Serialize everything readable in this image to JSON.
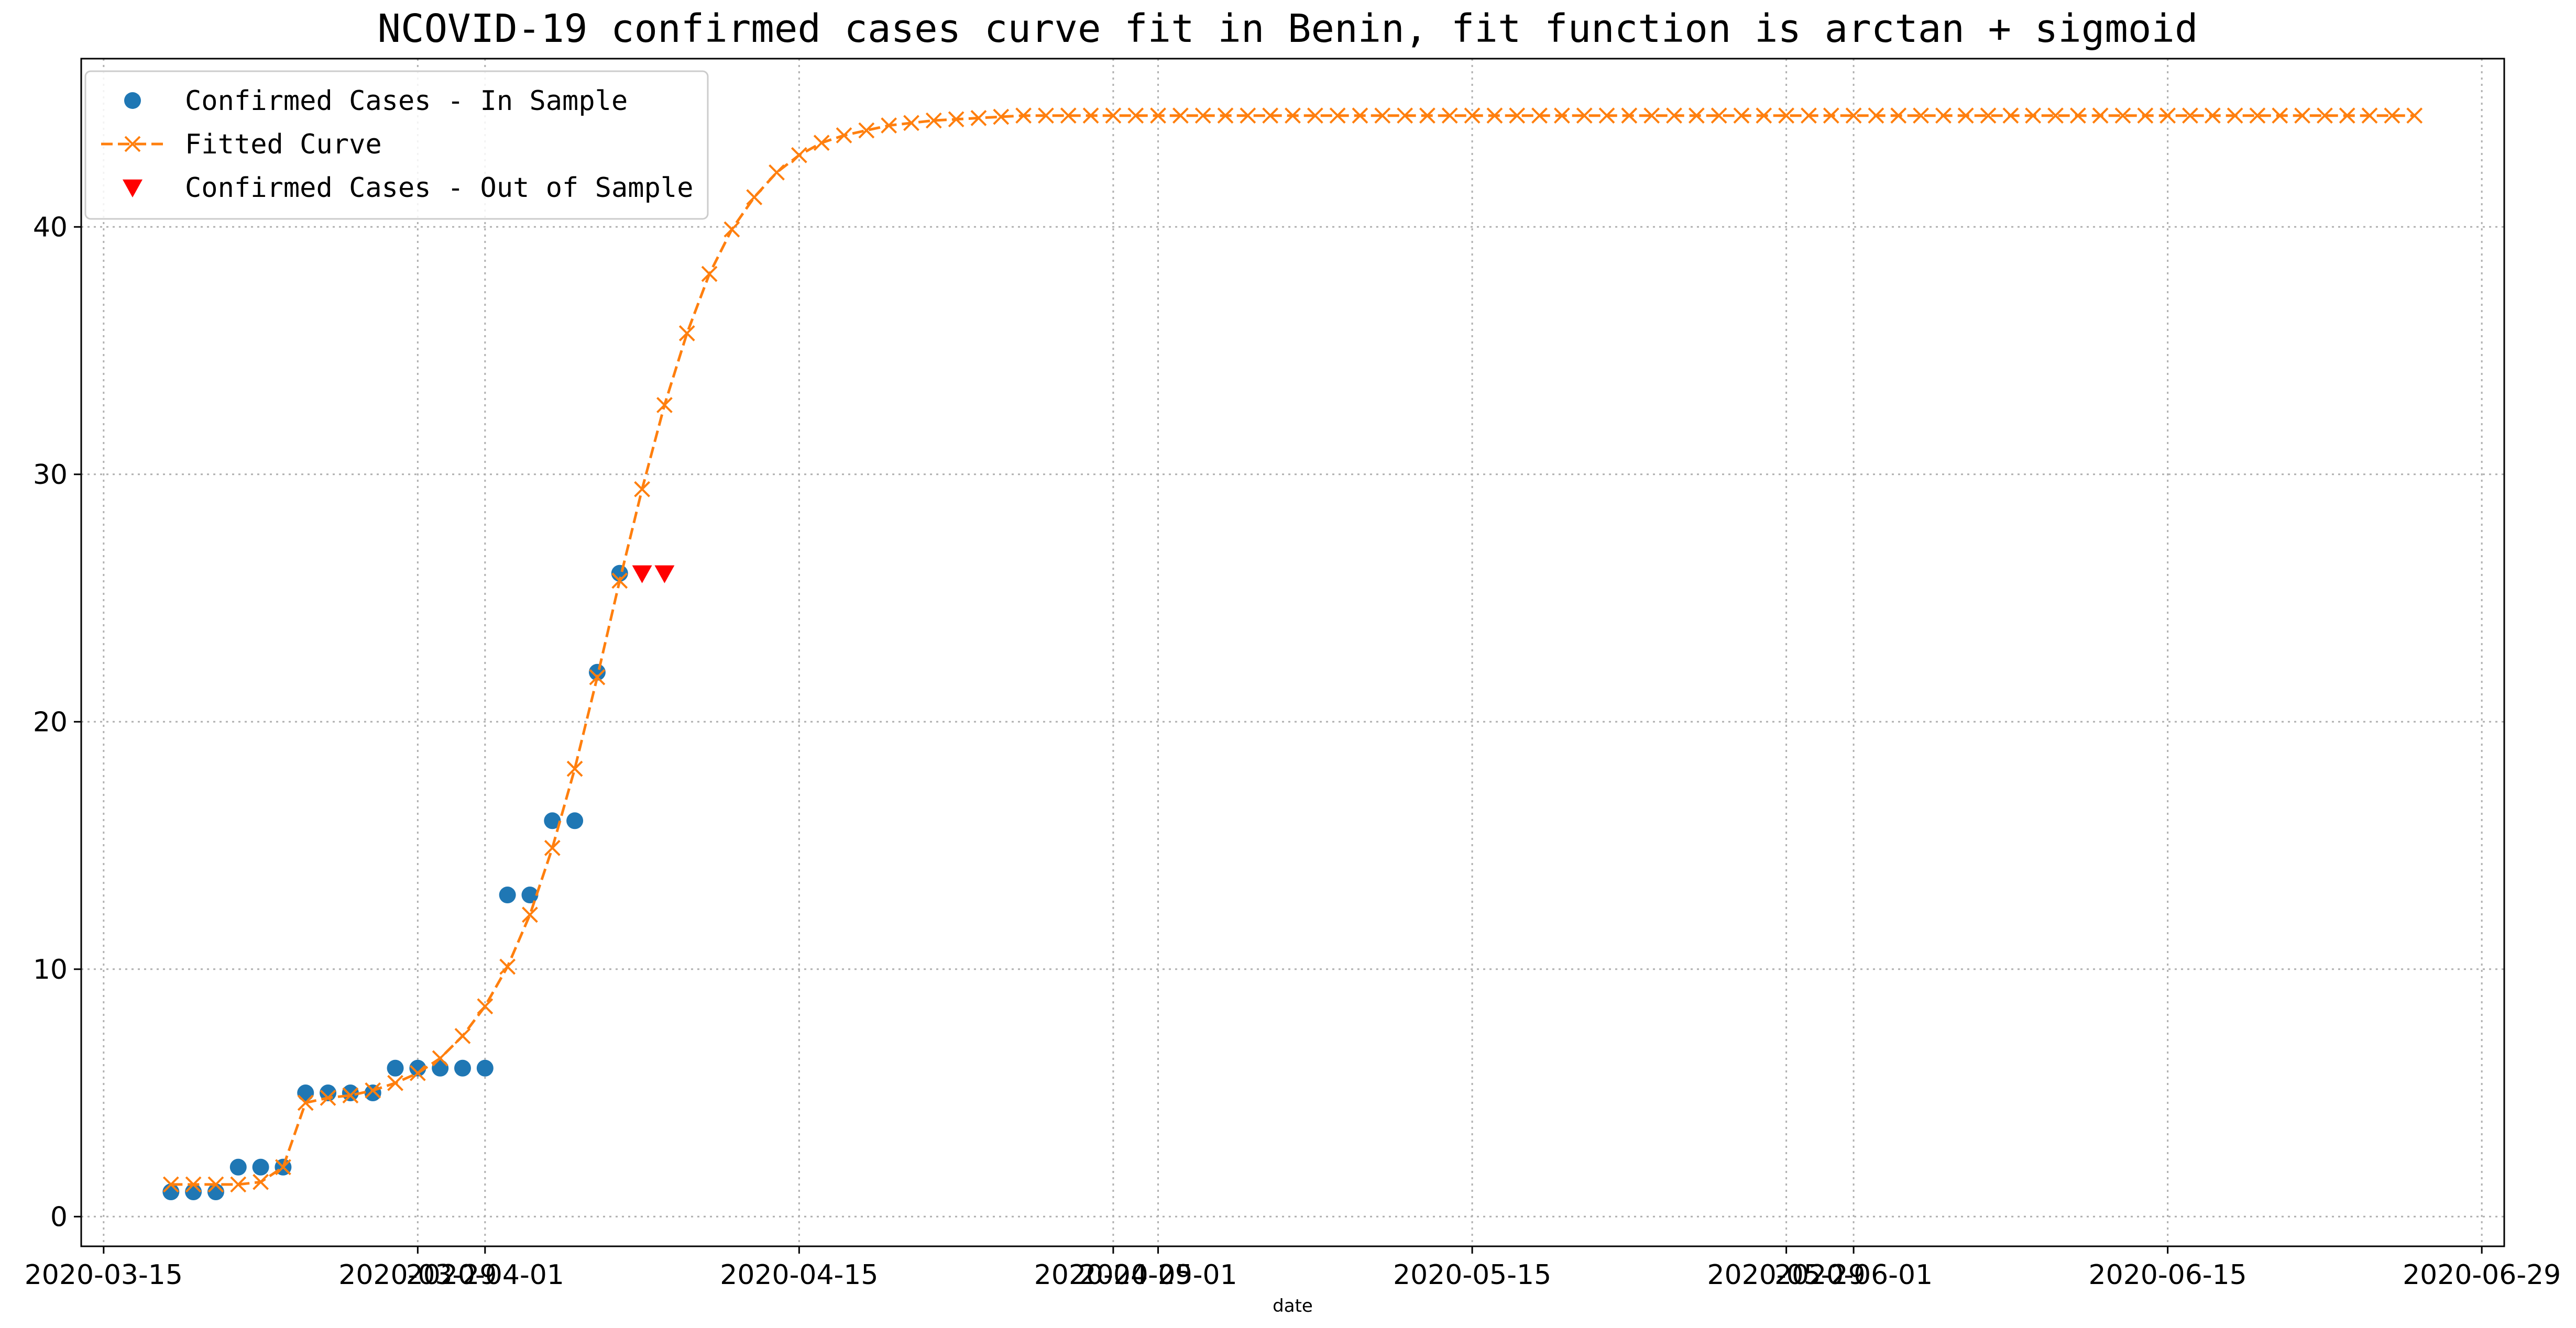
{
  "chart_data": {
    "type": "line",
    "title": "NCOVID-19 confirmed cases curve fit in Benin, fit function is arctan + sigmoid",
    "xlabel": "date",
    "ylabel": "",
    "xlim": [
      "2020-03-14",
      "2020-06-30"
    ],
    "ylim": [
      -1.2,
      46.8
    ],
    "grid": true,
    "legend_position": "top-left",
    "x_ticks": [
      {
        "date": "2020-03-15",
        "label": "2020-03-15"
      },
      {
        "date": "2020-03-29",
        "label": "2020-03-29"
      },
      {
        "date": "2020-04-01",
        "label": "2020-04-01"
      },
      {
        "date": "2020-04-15",
        "label": "2020-04-15"
      },
      {
        "date": "2020-04-29",
        "label": "2020-04-29"
      },
      {
        "date": "2020-05-01",
        "label": "2020-05-01"
      },
      {
        "date": "2020-05-15",
        "label": "2020-05-15"
      },
      {
        "date": "2020-05-29",
        "label": "2020-05-29"
      },
      {
        "date": "2020-06-01",
        "label": "2020-06-01"
      },
      {
        "date": "2020-06-15",
        "label": "2020-06-15"
      },
      {
        "date": "2020-06-29",
        "label": "2020-06-29"
      }
    ],
    "y_ticks": [
      0,
      10,
      20,
      30,
      40
    ],
    "series": [
      {
        "name": "Confirmed Cases - In Sample",
        "kind": "scatter",
        "marker": "circle",
        "color": "#1f77b4",
        "start_date": "2020-03-18",
        "values": [
          1,
          1,
          1,
          2,
          2,
          2,
          5,
          5,
          5,
          5,
          6,
          6,
          6,
          6,
          6,
          13,
          13,
          16,
          16,
          22,
          26
        ]
      },
      {
        "name": "Fitted Curve",
        "kind": "line",
        "marker": "x",
        "line_style": "dashed",
        "color": "#ff7f0e",
        "start_date": "2020-03-18",
        "values": [
          1.3,
          1.3,
          1.3,
          1.3,
          1.4,
          2.0,
          4.6,
          4.8,
          4.9,
          5.1,
          5.4,
          5.8,
          6.4,
          7.3,
          8.5,
          10.1,
          12.2,
          14.9,
          18.1,
          21.8,
          25.7,
          29.4,
          32.8,
          35.7,
          38.1,
          39.9,
          41.2,
          42.2,
          42.9,
          43.4,
          43.7,
          43.9,
          44.1,
          44.2,
          44.3,
          44.35,
          44.4,
          44.45,
          44.5,
          44.5,
          44.5,
          44.5,
          44.5,
          44.5,
          44.5,
          44.5,
          44.5,
          44.5,
          44.5,
          44.5,
          44.5,
          44.5,
          44.5,
          44.5,
          44.5,
          44.5,
          44.5,
          44.5,
          44.5,
          44.5,
          44.5,
          44.5,
          44.5,
          44.5,
          44.5,
          44.5,
          44.5,
          44.5,
          44.5,
          44.5,
          44.5,
          44.5,
          44.5,
          44.5,
          44.5,
          44.5,
          44.5,
          44.5,
          44.5,
          44.5,
          44.5,
          44.5,
          44.5,
          44.5,
          44.5,
          44.5,
          44.5,
          44.5,
          44.5,
          44.5,
          44.5,
          44.5,
          44.5,
          44.5,
          44.5,
          44.5,
          44.5,
          44.5,
          44.5,
          44.5,
          44.5
        ]
      },
      {
        "name": "Confirmed Cases - Out of Sample",
        "kind": "scatter",
        "marker": "triangle-down",
        "color": "#ff0000",
        "start_date": "2020-04-08",
        "values": [
          26,
          26
        ]
      }
    ]
  }
}
